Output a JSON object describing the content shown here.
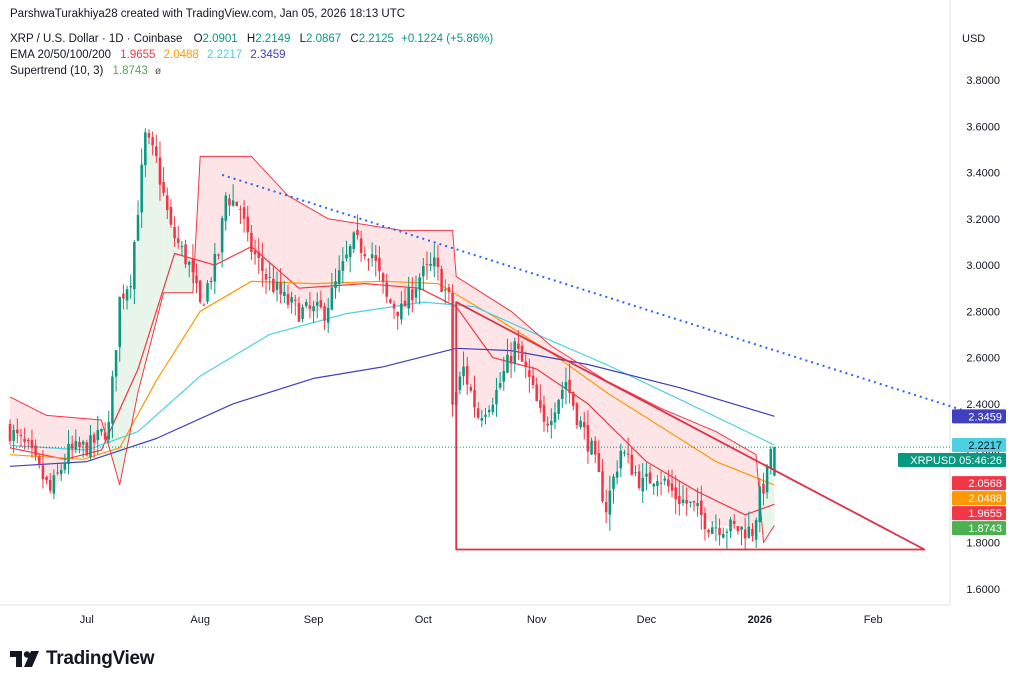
{
  "header": {
    "credit": "ParshwaTurakhiya28 created with TradingView.com, Jan 05, 2026 18:13 UTC",
    "symbol_line": "XRP / U.S. Dollar · 1D · Coinbase",
    "ohlc": {
      "o_label": "O",
      "o": "2.0901",
      "h_label": "H",
      "h": "2.2149",
      "l_label": "L",
      "l": "2.0867",
      "c_label": "C",
      "c": "2.2125",
      "change": "+0.1224 (+5.86%)"
    },
    "ema_label": "EMA 20/50/100/200",
    "ema_values": [
      "1.9655",
      "2.0488",
      "2.2217",
      "2.3459"
    ],
    "supertrend_label": "Supertrend (10, 3)",
    "supertrend_value": "1.8743",
    "eye_icon": "eye-slash-icon"
  },
  "currency": "USD",
  "brand": {
    "name": "TradingView",
    "logo_icon": "tradingview-logo-icon"
  },
  "colors": {
    "up": "#089981",
    "down": "#f23645",
    "ema20": "#f23645",
    "ema50": "#ff9800",
    "ema100": "#4dd0e1",
    "ema200": "#3f3fbf",
    "supertrend_up": "#4caf50",
    "supertrend_down": "#f23645",
    "trendline_dotted": "#2962ff",
    "pattern": "#e0304a",
    "last_price": "#089981"
  },
  "chart_data": {
    "type": "candlestick",
    "title": "XRP / U.S. Dollar · 1D · Coinbase",
    "y_axis": {
      "ticks": [
        3.8,
        3.6,
        3.4,
        3.2,
        3.0,
        2.8,
        2.6,
        2.4,
        2.2,
        1.8,
        1.6
      ],
      "tick_labels": [
        "3.8000",
        "3.6000",
        "3.4000",
        "3.2000",
        "3.0000",
        "2.8000",
        "2.6000",
        "2.4000",
        "2.2000",
        "1.8000",
        "1.6000"
      ],
      "range": [
        1.53,
        3.93
      ]
    },
    "x_axis": {
      "range": [
        "2025-06-10",
        "2026-02-22"
      ],
      "labels": [
        {
          "text": "Jul",
          "date": "2025-07-01",
          "bold": false
        },
        {
          "text": "Aug",
          "date": "2025-08-01",
          "bold": false
        },
        {
          "text": "Sep",
          "date": "2025-09-01",
          "bold": false
        },
        {
          "text": "Oct",
          "date": "2025-10-01",
          "bold": false
        },
        {
          "text": "Nov",
          "date": "2025-11-01",
          "bold": false
        },
        {
          "text": "Dec",
          "date": "2025-12-01",
          "bold": false
        },
        {
          "text": "2026",
          "date": "2026-01-01",
          "bold": true
        },
        {
          "text": "Feb",
          "date": "2026-02-01",
          "bold": false
        }
      ]
    },
    "price_anchors": [
      [
        "2025-06-10",
        2.3
      ],
      [
        "2025-06-16",
        2.2
      ],
      [
        "2025-06-22",
        2.02
      ],
      [
        "2025-06-27",
        2.19
      ],
      [
        "2025-07-03",
        2.22
      ],
      [
        "2025-07-08",
        2.3
      ],
      [
        "2025-07-11",
        2.85
      ],
      [
        "2025-07-14",
        2.95
      ],
      [
        "2025-07-18",
        3.55
      ],
      [
        "2025-07-21",
        3.45
      ],
      [
        "2025-07-25",
        3.15
      ],
      [
        "2025-07-30",
        3.0
      ],
      [
        "2025-08-02",
        2.82
      ],
      [
        "2025-08-07",
        3.05
      ],
      [
        "2025-08-09",
        3.3
      ],
      [
        "2025-08-13",
        3.25
      ],
      [
        "2025-08-15",
        3.1
      ],
      [
        "2025-08-20",
        2.95
      ],
      [
        "2025-08-25",
        2.85
      ],
      [
        "2025-08-29",
        2.8
      ],
      [
        "2025-09-05",
        2.8
      ],
      [
        "2025-09-09",
        2.95
      ],
      [
        "2025-09-13",
        3.1
      ],
      [
        "2025-09-18",
        3.05
      ],
      [
        "2025-09-22",
        2.85
      ],
      [
        "2025-09-26",
        2.8
      ],
      [
        "2025-10-01",
        2.95
      ],
      [
        "2025-10-05",
        3.0
      ],
      [
        "2025-10-09",
        2.85
      ],
      [
        "2025-10-10",
        2.4
      ],
      [
        "2025-10-13",
        2.55
      ],
      [
        "2025-10-17",
        2.35
      ],
      [
        "2025-10-22",
        2.45
      ],
      [
        "2025-10-27",
        2.65
      ],
      [
        "2025-10-31",
        2.5
      ],
      [
        "2025-11-04",
        2.3
      ],
      [
        "2025-11-10",
        2.5
      ],
      [
        "2025-11-13",
        2.35
      ],
      [
        "2025-11-17",
        2.2
      ],
      [
        "2025-11-21",
        1.95
      ],
      [
        "2025-11-25",
        2.2
      ],
      [
        "2025-12-01",
        2.05
      ],
      [
        "2025-12-05",
        2.1
      ],
      [
        "2025-12-10",
        2.0
      ],
      [
        "2025-12-15",
        1.95
      ],
      [
        "2025-12-19",
        1.88
      ],
      [
        "2025-12-23",
        1.87
      ],
      [
        "2025-12-27",
        1.86
      ],
      [
        "2025-12-31",
        1.85
      ],
      [
        "2026-01-02",
        2.0
      ],
      [
        "2026-01-04",
        2.09
      ],
      [
        "2026-01-05",
        2.21
      ]
    ],
    "last_candle": {
      "date": "2026-01-05",
      "open": 2.0901,
      "high": 2.2149,
      "low": 2.0867,
      "close": 2.2125
    },
    "series": [
      {
        "name": "EMA 20",
        "value": 1.9655,
        "points": [
          [
            "2025-06-10",
            2.21
          ],
          [
            "2025-06-25",
            2.16
          ],
          [
            "2025-07-05",
            2.2
          ],
          [
            "2025-07-15",
            2.55
          ],
          [
            "2025-07-25",
            3.05
          ],
          [
            "2025-08-05",
            3.0
          ],
          [
            "2025-08-15",
            3.08
          ],
          [
            "2025-08-28",
            2.9
          ],
          [
            "2025-09-15",
            2.92
          ],
          [
            "2025-09-30",
            2.9
          ],
          [
            "2025-10-10",
            2.82
          ],
          [
            "2025-10-20",
            2.6
          ],
          [
            "2025-11-01",
            2.55
          ],
          [
            "2025-11-15",
            2.4
          ],
          [
            "2025-12-01",
            2.15
          ],
          [
            "2025-12-15",
            2.02
          ],
          [
            "2025-12-28",
            1.92
          ],
          [
            "2026-01-05",
            1.9655
          ]
        ]
      },
      {
        "name": "EMA 50",
        "value": 2.0488,
        "points": [
          [
            "2025-06-10",
            2.18
          ],
          [
            "2025-06-30",
            2.16
          ],
          [
            "2025-07-10",
            2.21
          ],
          [
            "2025-07-20",
            2.5
          ],
          [
            "2025-08-01",
            2.8
          ],
          [
            "2025-08-15",
            2.93
          ],
          [
            "2025-09-01",
            2.92
          ],
          [
            "2025-09-20",
            2.93
          ],
          [
            "2025-10-05",
            2.92
          ],
          [
            "2025-10-20",
            2.78
          ],
          [
            "2025-11-05",
            2.62
          ],
          [
            "2025-11-20",
            2.45
          ],
          [
            "2025-12-05",
            2.3
          ],
          [
            "2025-12-20",
            2.15
          ],
          [
            "2026-01-05",
            2.0488
          ]
        ]
      },
      {
        "name": "EMA 100",
        "value": 2.2217,
        "points": [
          [
            "2025-06-10",
            2.22
          ],
          [
            "2025-07-01",
            2.2
          ],
          [
            "2025-07-15",
            2.28
          ],
          [
            "2025-08-01",
            2.52
          ],
          [
            "2025-08-20",
            2.7
          ],
          [
            "2025-09-10",
            2.79
          ],
          [
            "2025-10-01",
            2.84
          ],
          [
            "2025-10-15",
            2.82
          ],
          [
            "2025-11-01",
            2.7
          ],
          [
            "2025-11-20",
            2.57
          ],
          [
            "2025-12-10",
            2.42
          ],
          [
            "2026-01-05",
            2.2217
          ]
        ]
      },
      {
        "name": "EMA 200",
        "value": 2.3459,
        "points": [
          [
            "2025-06-10",
            2.13
          ],
          [
            "2025-07-01",
            2.15
          ],
          [
            "2025-07-20",
            2.25
          ],
          [
            "2025-08-10",
            2.4
          ],
          [
            "2025-09-01",
            2.51
          ],
          [
            "2025-09-20",
            2.56
          ],
          [
            "2025-10-10",
            2.64
          ],
          [
            "2025-10-25",
            2.63
          ],
          [
            "2025-11-15",
            2.57
          ],
          [
            "2025-12-10",
            2.47
          ],
          [
            "2026-01-05",
            2.3459
          ]
        ]
      },
      {
        "name": "Supertrend",
        "value": 1.8743,
        "points": [
          [
            "2025-06-10",
            2.43
          ],
          [
            "2025-06-20",
            2.35
          ],
          [
            "2025-07-05",
            2.33
          ],
          [
            "2025-07-10",
            2.05
          ],
          [
            "2025-07-15",
            2.45
          ],
          [
            "2025-07-22",
            2.88
          ],
          [
            "2025-07-30",
            2.88
          ],
          [
            "2025-08-01",
            3.47
          ],
          [
            "2025-08-15",
            3.47
          ],
          [
            "2025-08-25",
            3.3
          ],
          [
            "2025-09-05",
            3.2
          ],
          [
            "2025-09-25",
            3.15
          ],
          [
            "2025-10-09",
            3.15
          ],
          [
            "2025-10-10",
            2.95
          ],
          [
            "2025-10-25",
            2.8
          ],
          [
            "2025-11-05",
            2.65
          ],
          [
            "2025-11-20",
            2.5
          ],
          [
            "2025-12-05",
            2.38
          ],
          [
            "2025-12-20",
            2.28
          ],
          [
            "2025-12-31",
            2.18
          ],
          [
            "2026-01-02",
            1.8
          ],
          [
            "2026-01-05",
            1.8743
          ]
        ]
      }
    ],
    "drawings": {
      "dotted_trendline": [
        [
          "2025-08-07",
          3.39
        ],
        [
          "2026-02-28",
          2.36
        ]
      ],
      "triangle": [
        [
          "2025-10-10",
          2.84
        ],
        [
          "2025-10-10",
          1.77
        ],
        [
          "2026-02-15",
          1.77
        ]
      ]
    },
    "price_labels": [
      {
        "text": "2.3459",
        "value": 2.3459,
        "bg": "#3f3fbf",
        "fg": "#ffffff"
      },
      {
        "text": "2.2217",
        "value": 2.2217,
        "bg": "#4dd0e1",
        "fg": "#131722"
      },
      {
        "text": "XRPUSD",
        "extra": "05:46:26",
        "value": 2.2125,
        "bg": "#089981",
        "fg": "#ffffff"
      },
      {
        "text": "2.0568",
        "value": 2.0568,
        "bg": "#f23645",
        "fg": "#ffffff"
      },
      {
        "text": "2.0488",
        "value": 2.0488,
        "bg": "#ff9800",
        "fg": "#ffffff"
      },
      {
        "text": "1.9655",
        "value": 1.9655,
        "bg": "#f23645",
        "fg": "#ffffff"
      },
      {
        "text": "1.8743",
        "value": 1.8743,
        "bg": "#4caf50",
        "fg": "#ffffff"
      }
    ]
  }
}
